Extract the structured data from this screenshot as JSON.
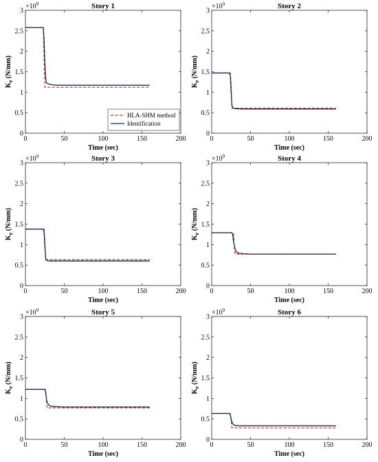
{
  "chart_data": [
    {
      "type": "line",
      "title": "Story 1",
      "xlabel": "Time (sec)",
      "ylabel": "K",
      "ylabel_sub": "e",
      "ylabel_unit": " (N/mm)",
      "xlim": [
        0,
        200
      ],
      "ylim": [
        0,
        3
      ],
      "exponent_label": "×10",
      "exponent_power": "9",
      "xticks": [
        "0",
        "50",
        "100",
        "150",
        "200"
      ],
      "yticks": [
        "0",
        "0.5",
        "1",
        "1.5",
        "2",
        "2.5",
        "3"
      ],
      "legend": "bottom-right",
      "series": [
        {
          "name": "HLA-SHM method",
          "color": "#e31a1c",
          "dash": true,
          "x": [
            0,
            23,
            24,
            25,
            160
          ],
          "y": [
            2.58,
            2.58,
            1.9,
            1.12,
            1.12
          ]
        },
        {
          "name": "Identification",
          "color": "#14284b",
          "dash": false,
          "x": [
            0,
            23,
            24,
            25,
            26,
            27,
            30,
            35,
            40,
            60,
            100,
            160
          ],
          "y": [
            2.58,
            2.58,
            2.3,
            1.7,
            1.35,
            1.23,
            1.2,
            1.18,
            1.17,
            1.17,
            1.17,
            1.17
          ]
        }
      ]
    },
    {
      "type": "line",
      "title": "Story 2",
      "xlabel": "Time (sec)",
      "ylabel": "K",
      "ylabel_sub": "e",
      "ylabel_unit": " (N/mm)",
      "xlim": [
        0,
        200
      ],
      "ylim": [
        0,
        3
      ],
      "exponent_label": "×10",
      "exponent_power": "9",
      "xticks": [
        "0",
        "50",
        "100",
        "150",
        "200"
      ],
      "yticks": [
        "0",
        "0.5",
        "1",
        "1.5",
        "2",
        "2.5",
        "3"
      ],
      "series": [
        {
          "name": "HLA-SHM method",
          "color": "#e31a1c",
          "dash": true,
          "x": [
            0,
            24,
            25,
            26,
            160
          ],
          "y": [
            1.47,
            1.47,
            1.2,
            0.61,
            0.61
          ]
        },
        {
          "name": "Identification",
          "color": "#14284b",
          "dash": false,
          "x": [
            0,
            23,
            24,
            25,
            26,
            27,
            30,
            40,
            160
          ],
          "y": [
            1.47,
            1.47,
            1.4,
            1.0,
            0.7,
            0.62,
            0.6,
            0.59,
            0.59
          ]
        }
      ]
    },
    {
      "type": "line",
      "title": "Story 3",
      "xlabel": "Time (sec)",
      "ylabel": "K",
      "ylabel_sub": "e",
      "ylabel_unit": " (N/mm)",
      "xlim": [
        0,
        200
      ],
      "ylim": [
        0,
        3
      ],
      "exponent_label": "×10",
      "exponent_power": "9",
      "xticks": [
        "0",
        "50",
        "100",
        "150",
        "200"
      ],
      "yticks": [
        "0",
        "0.5",
        "1",
        "1.5",
        "2",
        "2.5",
        "3"
      ],
      "series": [
        {
          "name": "HLA-SHM method",
          "color": "#e31a1c",
          "dash": true,
          "x": [
            0,
            24,
            25,
            26,
            160
          ],
          "y": [
            1.38,
            1.38,
            1.1,
            0.63,
            0.63
          ]
        },
        {
          "name": "Identification",
          "color": "#14284b",
          "dash": false,
          "x": [
            0,
            23,
            24,
            25,
            26,
            27,
            30,
            40,
            160
          ],
          "y": [
            1.38,
            1.38,
            1.3,
            0.95,
            0.68,
            0.62,
            0.6,
            0.6,
            0.6
          ]
        }
      ]
    },
    {
      "type": "line",
      "title": "Story 4",
      "xlabel": "Time (sec)",
      "ylabel": "K",
      "ylabel_sub": "e",
      "ylabel_unit": " (N/mm)",
      "xlim": [
        0,
        200
      ],
      "ylim": [
        0,
        3
      ],
      "exponent_label": "×10",
      "exponent_power": "9",
      "xticks": [
        "0",
        "50",
        "100",
        "150",
        "200"
      ],
      "yticks": [
        "0",
        "0.5",
        "1",
        "1.5",
        "2",
        "2.5",
        "3"
      ],
      "series": [
        {
          "name": "HLA-SHM method",
          "color": "#e31a1c",
          "dash": true,
          "x": [
            0,
            28,
            29,
            30,
            160
          ],
          "y": [
            1.29,
            1.29,
            1.0,
            0.77,
            0.77
          ]
        },
        {
          "name": "Identification",
          "color": "#14284b",
          "dash": false,
          "x": [
            0,
            26,
            27,
            28,
            30,
            32,
            35,
            40,
            50,
            160
          ],
          "y": [
            1.29,
            1.29,
            1.25,
            1.1,
            0.9,
            0.82,
            0.79,
            0.78,
            0.77,
            0.77
          ]
        }
      ]
    },
    {
      "type": "line",
      "title": "Story 5",
      "xlabel": "Time (sec)",
      "ylabel": "K",
      "ylabel_sub": "e",
      "ylabel_unit": " (N/mm)",
      "xlim": [
        0,
        200
      ],
      "ylim": [
        0,
        3
      ],
      "exponent_label": "×10",
      "exponent_power": "9",
      "xticks": [
        "0",
        "50",
        "100",
        "150",
        "200"
      ],
      "yticks": [
        "0",
        "0.5",
        "1",
        "1.5",
        "2",
        "2.5",
        "3"
      ],
      "series": [
        {
          "name": "HLA-SHM method",
          "color": "#e31a1c",
          "dash": true,
          "x": [
            0,
            26,
            27,
            28,
            160
          ],
          "y": [
            1.22,
            1.22,
            0.95,
            0.77,
            0.77
          ]
        },
        {
          "name": "Identification",
          "color": "#14284b",
          "dash": false,
          "x": [
            0,
            25,
            26,
            27,
            28,
            30,
            33,
            38,
            50,
            160
          ],
          "y": [
            1.22,
            1.22,
            1.15,
            1.0,
            0.9,
            0.84,
            0.81,
            0.8,
            0.79,
            0.79
          ]
        }
      ]
    },
    {
      "type": "line",
      "title": "Story 6",
      "xlabel": "Time (sec)",
      "ylabel": "K",
      "ylabel_sub": "e",
      "ylabel_unit": " (N/mm)",
      "xlim": [
        0,
        200
      ],
      "ylim": [
        0,
        3
      ],
      "exponent_label": "×10",
      "exponent_power": "9",
      "xticks": [
        "0",
        "50",
        "100",
        "150",
        "200"
      ],
      "yticks": [
        "0",
        "0.5",
        "1",
        "1.5",
        "2",
        "2.5",
        "3"
      ],
      "series": [
        {
          "name": "HLA-SHM method",
          "color": "#e31a1c",
          "dash": true,
          "x": [
            0,
            24,
            25,
            26,
            160
          ],
          "y": [
            0.63,
            0.63,
            0.45,
            0.28,
            0.28
          ]
        },
        {
          "name": "Identification",
          "color": "#14284b",
          "dash": false,
          "x": [
            0,
            23,
            24,
            25,
            26,
            28,
            30,
            35,
            40,
            160
          ],
          "y": [
            0.63,
            0.63,
            0.6,
            0.5,
            0.42,
            0.36,
            0.34,
            0.33,
            0.33,
            0.33
          ]
        }
      ]
    }
  ]
}
